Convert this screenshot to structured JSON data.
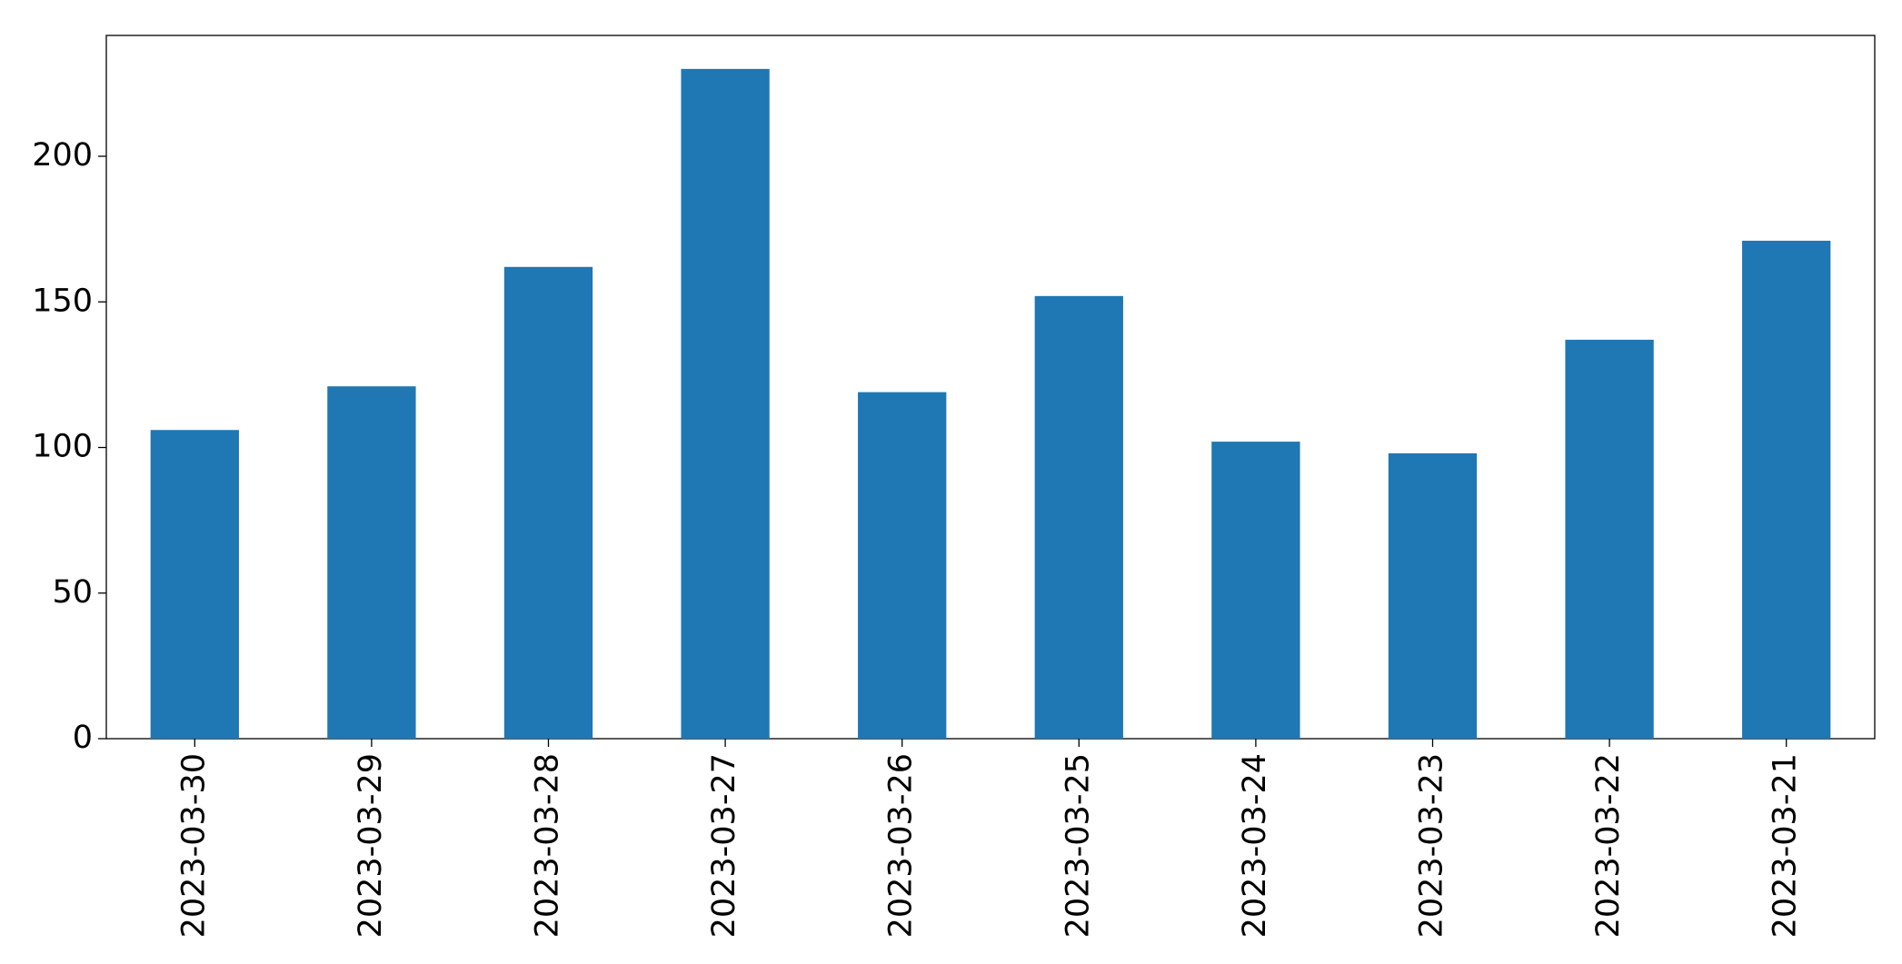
{
  "chart_data": {
    "type": "bar",
    "categories": [
      "2023-03-30",
      "2023-03-29",
      "2023-03-28",
      "2023-03-27",
      "2023-03-26",
      "2023-03-25",
      "2023-03-24",
      "2023-03-23",
      "2023-03-22",
      "2023-03-21"
    ],
    "values": [
      106,
      121,
      162,
      230,
      119,
      152,
      102,
      98,
      137,
      171
    ],
    "color": "#1f77b4",
    "ylim": [
      0,
      241.5
    ],
    "yticks": [
      0,
      50,
      100,
      150,
      200
    ],
    "grid": false
  }
}
